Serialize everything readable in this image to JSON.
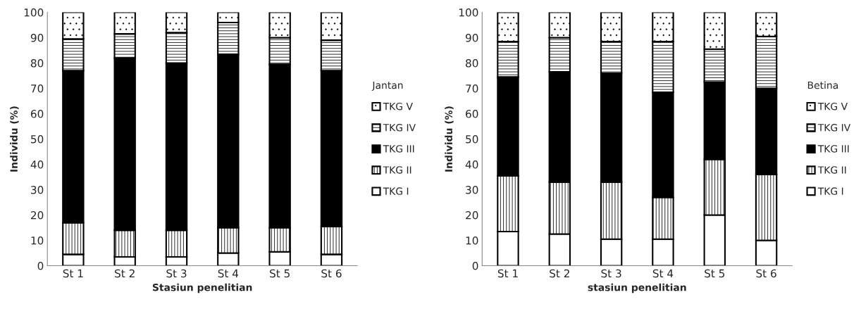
{
  "chart_data": [
    {
      "type": "bar",
      "stacked": true,
      "categories": [
        "St 1",
        "St 2",
        "St 3",
        "St 4",
        "St 5",
        "St 6"
      ],
      "xlabel": "Stasiun penelitian",
      "ylabel": "Individu (%)",
      "legend_title": "Jantan",
      "legend": "right",
      "grid": false,
      "ylim": [
        0,
        100
      ],
      "yticks": [
        0,
        10,
        20,
        30,
        40,
        50,
        60,
        70,
        80,
        90,
        100
      ],
      "series": [
        {
          "name": "TKG I",
          "color": "#ffffff",
          "values": [
            4.5,
            3.5,
            3.5,
            5,
            5.5,
            4.5
          ]
        },
        {
          "name": "TKG II",
          "color": "#000000",
          "values": [
            12.5,
            10.5,
            10.5,
            10,
            9.5,
            11
          ]
        },
        {
          "name": "TKG III",
          "color": "#000000",
          "values": [
            60,
            68,
            66,
            68.5,
            64.5,
            61.5
          ]
        },
        {
          "name": "TKG IV",
          "color": "#000000",
          "values": [
            12.5,
            9.5,
            12,
            12.5,
            10.5,
            12
          ]
        },
        {
          "name": "TKG V",
          "color": "#000000",
          "values": [
            10.5,
            8.5,
            8,
            4,
            10,
            11
          ]
        }
      ]
    },
    {
      "type": "bar",
      "stacked": true,
      "categories": [
        "St 1",
        "St 2",
        "St 3",
        "St 4",
        "St 5",
        "St 6"
      ],
      "xlabel": "stasiun penelitian",
      "ylabel": "Individu (%)",
      "legend_title": "Betina",
      "legend": "right",
      "grid": false,
      "ylim": [
        0,
        100
      ],
      "yticks": [
        0,
        10,
        20,
        30,
        40,
        50,
        60,
        70,
        80,
        90,
        100
      ],
      "series": [
        {
          "name": "TKG I",
          "color": "#ffffff",
          "values": [
            13.5,
            12.5,
            10.5,
            10.5,
            20,
            10
          ]
        },
        {
          "name": "TKG II",
          "color": "#000000",
          "values": [
            22,
            20.5,
            22.5,
            16.5,
            22,
            26
          ]
        },
        {
          "name": "TKG III",
          "color": "#000000",
          "values": [
            39,
            43.5,
            43,
            41.5,
            30.5,
            34
          ]
        },
        {
          "name": "TKG IV",
          "color": "#000000",
          "values": [
            14,
            13.5,
            12.5,
            20,
            13,
            20.5
          ]
        },
        {
          "name": "TKG V",
          "color": "#000000",
          "values": [
            11.5,
            10,
            11.5,
            11.5,
            14.5,
            9.5
          ]
        }
      ]
    }
  ]
}
